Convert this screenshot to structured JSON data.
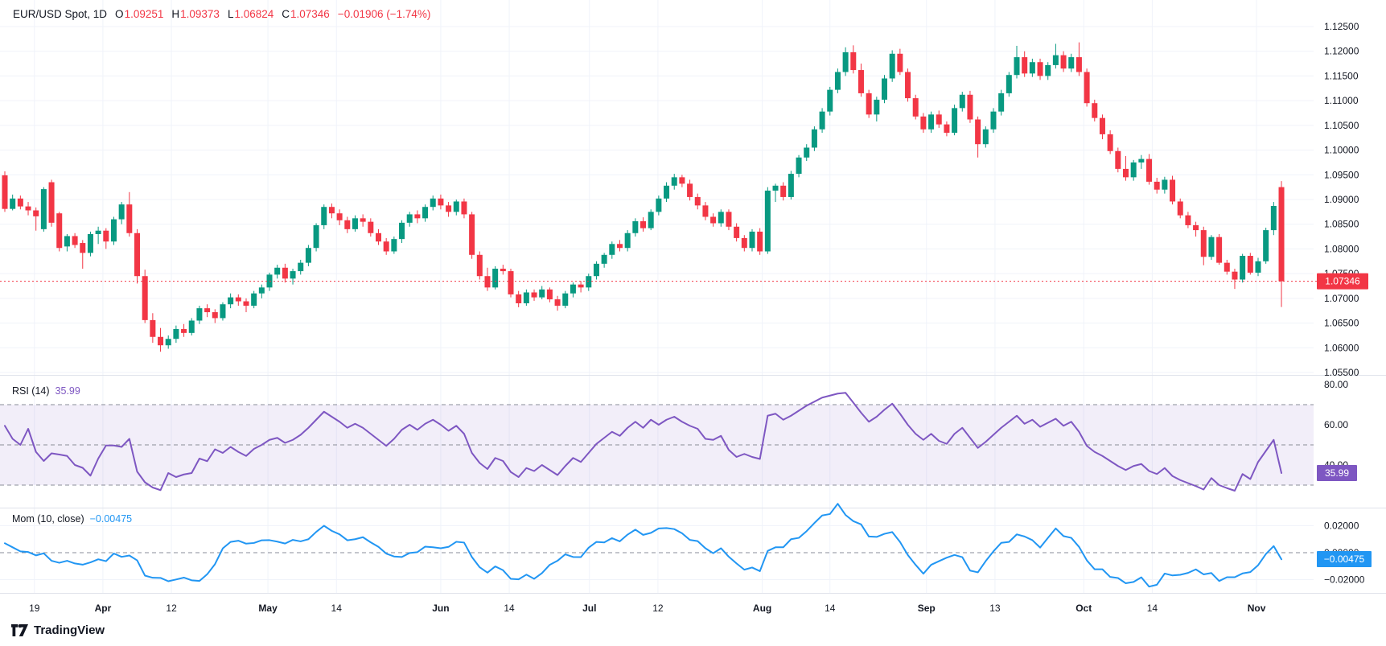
{
  "header": {
    "symbol": "EUR/USD Spot, 1D",
    "open_label": "O",
    "open": "1.09251",
    "high_label": "H",
    "high": "1.09373",
    "low_label": "L",
    "low": "1.06824",
    "close_label": "C",
    "close": "1.07346",
    "change": "−0.01906 (−1.74%)"
  },
  "colors": {
    "up": "#089981",
    "down": "#f23645",
    "rsi_line": "#7e57c2",
    "momentum_line": "#2196f3",
    "last_price": "#f23645",
    "grid": "#f0f3fa",
    "separator": "#e0e3eb",
    "axis_text": "#131722",
    "dashed_level": "#8a8d98",
    "rsi_band_fill": "rgba(126,87,194,0.10)",
    "badge_text": "#ffffff"
  },
  "price_axis": {
    "labels": [
      "1.12500",
      "1.12000",
      "1.11500",
      "1.11000",
      "1.10500",
      "1.10000",
      "1.09500",
      "1.09000",
      "1.08500",
      "1.08000",
      "1.07500",
      "1.07000",
      "1.06500",
      "1.06000",
      "1.05500"
    ],
    "last_price_badge": "1.07346"
  },
  "time_axis": {
    "ticks": [
      {
        "label": "19",
        "bold": false,
        "index": 3.8
      },
      {
        "label": "Apr",
        "bold": true,
        "index": 12.6
      },
      {
        "label": "12",
        "bold": false,
        "index": 21.4
      },
      {
        "label": "May",
        "bold": true,
        "index": 33.8
      },
      {
        "label": "14",
        "bold": false,
        "index": 42.6
      },
      {
        "label": "Jun",
        "bold": true,
        "index": 56.0
      },
      {
        "label": "14",
        "bold": false,
        "index": 64.8
      },
      {
        "label": "Jul",
        "bold": true,
        "index": 75.1
      },
      {
        "label": "12",
        "bold": false,
        "index": 83.9
      },
      {
        "label": "Aug",
        "bold": true,
        "index": 97.3
      },
      {
        "label": "14",
        "bold": false,
        "index": 106.0
      },
      {
        "label": "Sep",
        "bold": true,
        "index": 118.4
      },
      {
        "label": "13",
        "bold": false,
        "index": 127.2
      },
      {
        "label": "Oct",
        "bold": true,
        "index": 138.6
      },
      {
        "label": "14",
        "bold": false,
        "index": 147.4
      },
      {
        "label": "Nov",
        "bold": true,
        "index": 160.8
      }
    ]
  },
  "panes": {
    "rsi": {
      "title": "RSI (14)",
      "value": "35.99",
      "badge": "35.99",
      "band": [
        30,
        70
      ],
      "dashed_levels": [
        70,
        50,
        30
      ],
      "axis_labels": [
        {
          "label": "80.00",
          "v": 80
        },
        {
          "label": "60.00",
          "v": 60
        },
        {
          "label": "40.00",
          "v": 40
        }
      ]
    },
    "momentum": {
      "title": "Mom (10, close)",
      "value": "−0.00475",
      "badge": "−0.00475",
      "period": 10,
      "dashed_levels": [
        0
      ],
      "axis_labels": [
        {
          "label": "0.02000",
          "v": 0.02
        },
        {
          "label": "0.00000",
          "v": 0
        },
        {
          "label": "−0.02000",
          "v": -0.02
        }
      ]
    }
  },
  "watermark": {
    "brand": "TradingView"
  },
  "chart_data": {
    "type": "candlestick",
    "title": "EUR/USD Spot, 1D",
    "price_axis_range": [
      1.0545,
      1.129
    ],
    "rsi_axis_range": [
      18.8,
      84.4
    ],
    "momentum_axis_range": [
      -0.0299,
      0.0328
    ],
    "last_price": 1.07346,
    "last_candle": {
      "open": 1.09251,
      "high": 1.09373,
      "low": 1.06824,
      "close": 1.07346
    },
    "candles_ohlc": [
      [
        1.0949,
        1.0957,
        1.0875,
        1.0881
      ],
      [
        1.0881,
        1.091,
        1.0878,
        1.0902
      ],
      [
        1.0902,
        1.0908,
        1.088,
        1.0886
      ],
      [
        1.0886,
        1.0895,
        1.0868,
        1.0878
      ],
      [
        1.0878,
        1.0884,
        1.0837,
        1.0866
      ],
      [
        1.084,
        1.0925,
        1.0835,
        1.0921
      ],
      [
        1.0935,
        1.094,
        1.0845,
        1.0853
      ],
      [
        1.0872,
        1.0875,
        1.0795,
        1.0802
      ],
      [
        1.0805,
        1.083,
        1.0795,
        1.0826
      ],
      [
        1.0826,
        1.0832,
        1.0802,
        1.0808
      ],
      [
        1.0812,
        1.0818,
        1.076,
        1.0792
      ],
      [
        1.0792,
        1.0835,
        1.0785,
        1.083
      ],
      [
        1.083,
        1.0845,
        1.081,
        1.0837
      ],
      [
        1.0837,
        1.0842,
        1.08,
        1.0815
      ],
      [
        1.0815,
        1.0865,
        1.0808,
        1.086
      ],
      [
        1.086,
        1.0895,
        1.085,
        1.089
      ],
      [
        1.089,
        1.0915,
        1.0825,
        1.0832
      ],
      [
        1.0832,
        1.084,
        1.073,
        1.0745
      ],
      [
        1.0745,
        1.0758,
        1.065,
        1.0656
      ],
      [
        1.0656,
        1.067,
        1.061,
        1.0622
      ],
      [
        1.0622,
        1.064,
        1.0592,
        1.0605
      ],
      [
        1.0605,
        1.0625,
        1.0598,
        1.0618
      ],
      [
        1.0618,
        1.0645,
        1.061,
        1.0638
      ],
      [
        1.0638,
        1.0648,
        1.0622,
        1.063
      ],
      [
        1.063,
        1.066,
        1.0625,
        1.0655
      ],
      [
        1.0655,
        1.0685,
        1.0648,
        1.068
      ],
      [
        1.068,
        1.0688,
        1.0662,
        1.0672
      ],
      [
        1.0672,
        1.0678,
        1.065,
        1.066
      ],
      [
        1.066,
        1.0692,
        1.0655,
        1.0688
      ],
      [
        1.0688,
        1.071,
        1.068,
        1.0702
      ],
      [
        1.0702,
        1.0708,
        1.0685,
        1.0694
      ],
      [
        1.0694,
        1.07,
        1.0672,
        1.0685
      ],
      [
        1.0685,
        1.0715,
        1.068,
        1.071
      ],
      [
        1.071,
        1.0728,
        1.07,
        1.0722
      ],
      [
        1.0722,
        1.0752,
        1.0715,
        1.0748
      ],
      [
        1.0748,
        1.0768,
        1.074,
        1.0762
      ],
      [
        1.0762,
        1.077,
        1.0732,
        1.074
      ],
      [
        1.074,
        1.076,
        1.0728,
        1.0755
      ],
      [
        1.0755,
        1.0778,
        1.0748,
        1.0772
      ],
      [
        1.0772,
        1.0808,
        1.0765,
        1.0802
      ],
      [
        1.0802,
        1.0852,
        1.0795,
        1.0848
      ],
      [
        1.0848,
        1.089,
        1.084,
        1.0885
      ],
      [
        1.0885,
        1.0892,
        1.0862,
        1.0872
      ],
      [
        1.0872,
        1.088,
        1.0848,
        1.0858
      ],
      [
        1.0858,
        1.0865,
        1.0832,
        1.084
      ],
      [
        1.084,
        1.0868,
        1.0835,
        1.0862
      ],
      [
        1.0862,
        1.087,
        1.0845,
        1.0855
      ],
      [
        1.0855,
        1.0862,
        1.0825,
        1.0832
      ],
      [
        1.0832,
        1.084,
        1.0808,
        1.0815
      ],
      [
        1.0815,
        1.0822,
        1.0788,
        1.0795
      ],
      [
        1.0795,
        1.0825,
        1.079,
        1.082
      ],
      [
        1.082,
        1.0858,
        1.0812,
        1.0853
      ],
      [
        1.0853,
        1.0875,
        1.0845,
        1.087
      ],
      [
        1.087,
        1.0878,
        1.0852,
        1.0862
      ],
      [
        1.0862,
        1.089,
        1.0855,
        1.0885
      ],
      [
        1.0885,
        1.0908,
        1.0878,
        1.0902
      ],
      [
        1.0902,
        1.091,
        1.088,
        1.0888
      ],
      [
        1.0888,
        1.0895,
        1.0865,
        1.0875
      ],
      [
        1.0875,
        1.09,
        1.0868,
        1.0896
      ],
      [
        1.0896,
        1.0902,
        1.0862,
        1.087
      ],
      [
        1.087,
        1.0875,
        1.078,
        1.0788
      ],
      [
        1.0788,
        1.0795,
        1.0738,
        1.0745
      ],
      [
        1.0745,
        1.0762,
        1.0715,
        1.0722
      ],
      [
        1.0722,
        1.0765,
        1.0718,
        1.076
      ],
      [
        1.076,
        1.0768,
        1.0748,
        1.0755
      ],
      [
        1.0755,
        1.076,
        1.0702,
        1.0708
      ],
      [
        1.0708,
        1.0715,
        1.0682,
        1.069
      ],
      [
        1.069,
        1.0718,
        1.0685,
        1.0712
      ],
      [
        1.0712,
        1.0718,
        1.0695,
        1.0702
      ],
      [
        1.0702,
        1.0725,
        1.0698,
        1.0718
      ],
      [
        1.0718,
        1.0722,
        1.0692,
        1.0698
      ],
      [
        1.0698,
        1.0705,
        1.0675,
        1.0685
      ],
      [
        1.0685,
        1.0715,
        1.068,
        1.071
      ],
      [
        1.071,
        1.0732,
        1.0702,
        1.0728
      ],
      [
        1.0728,
        1.0735,
        1.0712,
        1.0722
      ],
      [
        1.0722,
        1.075,
        1.0715,
        1.0745
      ],
      [
        1.0745,
        1.0775,
        1.0738,
        1.077
      ],
      [
        1.077,
        1.0792,
        1.0762,
        1.0788
      ],
      [
        1.0788,
        1.0815,
        1.078,
        1.081
      ],
      [
        1.081,
        1.0818,
        1.0795,
        1.0802
      ],
      [
        1.0802,
        1.0838,
        1.0795,
        1.0832
      ],
      [
        1.0832,
        1.0862,
        1.0825,
        1.0856
      ],
      [
        1.0856,
        1.0864,
        1.0835,
        1.0842
      ],
      [
        1.0842,
        1.088,
        1.0838,
        1.0875
      ],
      [
        1.0875,
        1.0908,
        1.0868,
        1.0902
      ],
      [
        1.0902,
        1.0935,
        1.0895,
        1.0928
      ],
      [
        1.0928,
        1.0952,
        1.092,
        1.0945
      ],
      [
        1.0945,
        1.095,
        1.0925,
        1.0932
      ],
      [
        1.0932,
        1.094,
        1.0898,
        1.0905
      ],
      [
        1.0905,
        1.0912,
        1.088,
        1.0888
      ],
      [
        1.0888,
        1.0895,
        1.0858,
        1.0865
      ],
      [
        1.0865,
        1.0872,
        1.0845,
        1.0852
      ],
      [
        1.0852,
        1.088,
        1.0845,
        1.0875
      ],
      [
        1.0875,
        1.088,
        1.0838,
        1.0845
      ],
      [
        1.0845,
        1.0852,
        1.0815,
        1.0822
      ],
      [
        1.0822,
        1.0828,
        1.0795,
        1.0802
      ],
      [
        1.0802,
        1.084,
        1.0795,
        1.0835
      ],
      [
        1.0835,
        1.0842,
        1.0788,
        1.0795
      ],
      [
        1.0795,
        1.0925,
        1.079,
        1.0918
      ],
      [
        1.0918,
        1.0932,
        1.0895,
        1.0928
      ],
      [
        1.0928,
        1.0935,
        1.0898,
        1.0905
      ],
      [
        1.0905,
        1.0958,
        1.09,
        1.0952
      ],
      [
        1.0952,
        1.099,
        1.0945,
        1.0985
      ],
      [
        1.0985,
        1.1012,
        1.0978,
        1.1005
      ],
      [
        1.1005,
        1.1048,
        1.0998,
        1.1042
      ],
      [
        1.1042,
        1.1085,
        1.1035,
        1.1078
      ],
      [
        1.1078,
        1.1128,
        1.107,
        1.1122
      ],
      [
        1.1122,
        1.1165,
        1.1115,
        1.1158
      ],
      [
        1.1158,
        1.1208,
        1.115,
        1.1198
      ],
      [
        1.1198,
        1.1212,
        1.1155,
        1.1162
      ],
      [
        1.1162,
        1.1175,
        1.1108,
        1.1115
      ],
      [
        1.1115,
        1.1122,
        1.1065,
        1.1072
      ],
      [
        1.1072,
        1.1108,
        1.1058,
        1.1102
      ],
      [
        1.1102,
        1.1152,
        1.1095,
        1.1145
      ],
      [
        1.1145,
        1.1202,
        1.1138,
        1.1195
      ],
      [
        1.1195,
        1.1205,
        1.1152,
        1.1158
      ],
      [
        1.1158,
        1.1165,
        1.1098,
        1.1105
      ],
      [
        1.1105,
        1.1112,
        1.1062,
        1.1068
      ],
      [
        1.1068,
        1.1075,
        1.1035,
        1.1042
      ],
      [
        1.1042,
        1.1078,
        1.1035,
        1.1072
      ],
      [
        1.1072,
        1.108,
        1.1045,
        1.1052
      ],
      [
        1.1052,
        1.1058,
        1.1028,
        1.1035
      ],
      [
        1.1035,
        1.1092,
        1.103,
        1.1085
      ],
      [
        1.1085,
        1.1118,
        1.1078,
        1.1112
      ],
      [
        1.1112,
        1.112,
        1.1055,
        1.1062
      ],
      [
        1.1062,
        1.1068,
        1.0985,
        1.1012
      ],
      [
        1.1012,
        1.1048,
        1.1005,
        1.1042
      ],
      [
        1.1042,
        1.1085,
        1.1035,
        1.1078
      ],
      [
        1.1078,
        1.1122,
        1.107,
        1.1115
      ],
      [
        1.1115,
        1.1158,
        1.1108,
        1.1152
      ],
      [
        1.1152,
        1.1211,
        1.1145,
        1.1188
      ],
      [
        1.1188,
        1.12,
        1.1148,
        1.1155
      ],
      [
        1.1155,
        1.1185,
        1.1148,
        1.1178
      ],
      [
        1.1178,
        1.1185,
        1.1142,
        1.115
      ],
      [
        1.115,
        1.1178,
        1.1142,
        1.1172
      ],
      [
        1.1172,
        1.1215,
        1.1165,
        1.1192
      ],
      [
        1.1192,
        1.12,
        1.1158,
        1.1165
      ],
      [
        1.1165,
        1.1195,
        1.1158,
        1.1188
      ],
      [
        1.1188,
        1.1218,
        1.115,
        1.1158
      ],
      [
        1.1158,
        1.1165,
        1.1088,
        1.1095
      ],
      [
        1.1095,
        1.1102,
        1.1058,
        1.1065
      ],
      [
        1.1065,
        1.1072,
        1.1022,
        1.1032
      ],
      [
        1.1032,
        1.104,
        1.0992,
        1.0998
      ],
      [
        1.0998,
        1.1005,
        1.0955,
        1.0962
      ],
      [
        1.0962,
        1.0988,
        1.0938,
        1.0945
      ],
      [
        1.0945,
        1.098,
        1.0938,
        1.0975
      ],
      [
        1.0975,
        1.099,
        1.0962,
        1.0982
      ],
      [
        1.0982,
        1.0992,
        1.093,
        1.0936
      ],
      [
        1.0936,
        1.0944,
        1.0912,
        1.092
      ],
      [
        1.092,
        1.0946,
        1.0912,
        1.094
      ],
      [
        1.094,
        1.0948,
        1.089,
        1.0896
      ],
      [
        1.0896,
        1.0902,
        1.0862,
        1.0868
      ],
      [
        1.0868,
        1.0875,
        1.0842,
        1.0848
      ],
      [
        1.0848,
        1.0855,
        1.0825,
        1.0838
      ],
      [
        1.0838,
        1.0845,
        1.0767,
        1.0784
      ],
      [
        1.0784,
        1.0828,
        1.0778,
        1.0824
      ],
      [
        1.0824,
        1.083,
        1.0768,
        1.0772
      ],
      [
        1.0772,
        1.0778,
        1.0748,
        1.0754
      ],
      [
        1.0754,
        1.076,
        1.0719,
        1.0738
      ],
      [
        1.0738,
        1.079,
        1.0732,
        1.0786
      ],
      [
        1.0786,
        1.0792,
        1.0748,
        1.0752
      ],
      [
        1.0752,
        1.0782,
        1.0745,
        1.0775
      ],
      [
        1.0775,
        1.0843,
        1.077,
        1.0838
      ],
      [
        1.0838,
        1.0895,
        1.0828,
        1.0887
      ],
      [
        1.09251,
        1.09373,
        1.06824,
        1.07346
      ]
    ],
    "rsi_values": [
      59.5,
      53,
      50,
      58,
      46.5,
      42,
      45.8,
      45.2,
      44.5,
      40,
      38.6,
      34.7,
      43.2,
      49.7,
      49.7,
      49,
      53,
      36.7,
      31.4,
      28.8,
      27.5,
      36,
      34,
      35.3,
      36,
      43.2,
      41.9,
      47.8,
      46,
      49,
      46.5,
      44.5,
      48,
      50,
      52.5,
      53.5,
      51,
      52.5,
      55,
      58.5,
      62.5,
      66.5,
      64,
      61.5,
      58.5,
      60.5,
      58.5,
      55.5,
      52.5,
      49.5,
      53,
      57.5,
      60,
      57.5,
      60.5,
      62.5,
      60,
      57,
      59.5,
      55.5,
      46,
      41,
      38,
      43.5,
      42,
      36.5,
      34,
      38.5,
      37,
      40,
      37.5,
      35,
      39.5,
      43.5,
      41.5,
      46,
      50.5,
      53.5,
      56.5,
      54.5,
      58.5,
      61.5,
      58.5,
      62.5,
      60,
      62.5,
      64,
      61.5,
      59.5,
      58,
      53,
      52.5,
      54.5,
      47.5,
      44,
      45.5,
      44,
      43,
      64.5,
      65.5,
      62.5,
      64.5,
      67,
      69.5,
      71.5,
      73.5,
      74.5,
      75.5,
      75.9,
      71,
      66,
      61.5,
      64,
      67.5,
      70.5,
      65.5,
      60,
      55.5,
      52.5,
      55.5,
      52,
      50.5,
      55.5,
      58.5,
      53.5,
      48.5,
      51.5,
      55,
      58.5,
      61.5,
      64.5,
      60.5,
      62.5,
      59,
      61,
      63,
      59.5,
      61.5,
      56.5,
      49.5,
      46.5,
      44.5,
      42,
      39.5,
      37.5,
      39.5,
      40.5,
      37,
      35.5,
      38.5,
      34.5,
      32.5,
      31,
      29.5,
      27.8,
      33.5,
      30,
      28.5,
      27.2,
      35.5,
      33,
      41.5,
      47,
      52.5,
      35.99
    ],
    "momentum_lead_in": [
      0.007,
      0.004,
      0.001,
      0.0005,
      -0.002,
      -0.0005,
      -0.006,
      -0.0075,
      -0.006,
      -0.008
    ]
  }
}
